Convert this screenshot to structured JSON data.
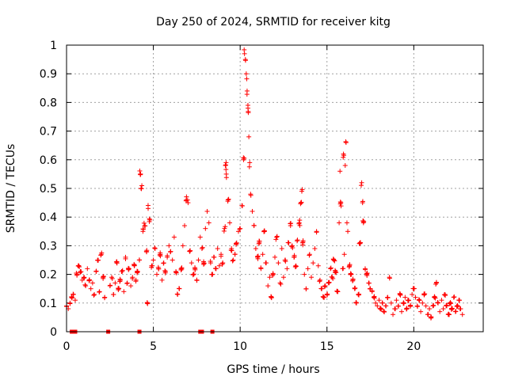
{
  "chart_data": {
    "type": "scatter",
    "title": "Day 250 of 2024, SRMTID for receiver kitg",
    "xlabel": "GPS time / hours",
    "ylabel": "SRMTID / TECUs",
    "xlim": [
      0,
      24
    ],
    "ylim": [
      0,
      1
    ],
    "xticks": [
      0,
      5,
      10,
      15,
      20
    ],
    "xtick_labels": [
      "0",
      "5",
      "10",
      "15",
      "20"
    ],
    "yticks": [
      0,
      0.1,
      0.2,
      0.3,
      0.4,
      0.5,
      0.6,
      0.7,
      0.8,
      0.9,
      1
    ],
    "ytick_labels": [
      "0",
      "0.1",
      "0.2",
      "0.3",
      "0.4",
      "0.5",
      "0.6",
      "0.7",
      "0.8",
      "0.9",
      "1"
    ],
    "grid": true,
    "marker": "plus",
    "color": "#ff0000",
    "series": [
      {
        "name": "SRMTID",
        "points": [
          [
            0.0,
            0.09
          ],
          [
            0.1,
            0.08
          ],
          [
            0.2,
            0.1
          ],
          [
            0.3,
            0.12
          ],
          [
            0.4,
            0.13
          ],
          [
            0.5,
            0.11
          ],
          [
            0.6,
            0.2
          ],
          [
            0.7,
            0.23
          ],
          [
            0.8,
            0.21
          ],
          [
            0.9,
            0.18
          ],
          [
            1.0,
            0.19
          ],
          [
            1.1,
            0.16
          ],
          [
            1.2,
            0.22
          ],
          [
            1.3,
            0.18
          ],
          [
            1.4,
            0.15
          ],
          [
            1.5,
            0.17
          ],
          [
            1.6,
            0.13
          ],
          [
            1.7,
            0.21
          ],
          [
            1.8,
            0.25
          ],
          [
            1.9,
            0.14
          ],
          [
            2.0,
            0.27
          ],
          [
            2.1,
            0.19
          ],
          [
            2.2,
            0.12
          ],
          [
            2.5,
            0.16
          ],
          [
            2.6,
            0.19
          ],
          [
            2.7,
            0.13
          ],
          [
            2.8,
            0.17
          ],
          [
            2.9,
            0.24
          ],
          [
            3.0,
            0.15
          ],
          [
            3.1,
            0.18
          ],
          [
            3.2,
            0.21
          ],
          [
            3.3,
            0.14
          ],
          [
            3.4,
            0.26
          ],
          [
            3.5,
            0.17
          ],
          [
            3.6,
            0.22
          ],
          [
            3.7,
            0.16
          ],
          [
            3.8,
            0.19
          ],
          [
            3.9,
            0.23
          ],
          [
            4.0,
            0.18
          ],
          [
            4.1,
            0.21
          ],
          [
            4.2,
            0.25
          ],
          [
            4.25,
            0.55
          ],
          [
            4.3,
            0.5
          ],
          [
            4.4,
            0.35
          ],
          [
            4.5,
            0.37
          ],
          [
            4.6,
            0.28
          ],
          [
            4.65,
            0.1
          ],
          [
            4.7,
            0.43
          ],
          [
            4.8,
            0.39
          ],
          [
            4.9,
            0.23
          ],
          [
            5.0,
            0.25
          ],
          [
            5.1,
            0.29
          ],
          [
            5.2,
            0.2
          ],
          [
            5.3,
            0.22
          ],
          [
            5.4,
            0.27
          ],
          [
            5.5,
            0.18
          ],
          [
            5.6,
            0.24
          ],
          [
            5.7,
            0.21
          ],
          [
            5.8,
            0.26
          ],
          [
            5.9,
            0.3
          ],
          [
            6.0,
            0.28
          ],
          [
            6.1,
            0.25
          ],
          [
            6.2,
            0.33
          ],
          [
            6.3,
            0.21
          ],
          [
            6.4,
            0.13
          ],
          [
            6.5,
            0.15
          ],
          [
            6.6,
            0.22
          ],
          [
            6.7,
            0.3
          ],
          [
            6.8,
            0.37
          ],
          [
            6.9,
            0.46
          ],
          [
            7.0,
            0.45
          ],
          [
            7.1,
            0.28
          ],
          [
            7.2,
            0.24
          ],
          [
            7.3,
            0.2
          ],
          [
            7.4,
            0.22
          ],
          [
            7.5,
            0.18
          ],
          [
            7.6,
            0.25
          ],
          [
            7.7,
            0.33
          ],
          [
            7.8,
            0.29
          ],
          [
            7.9,
            0.24
          ],
          [
            8.0,
            0.36
          ],
          [
            8.1,
            0.42
          ],
          [
            8.2,
            0.38
          ],
          [
            8.3,
            0.24
          ],
          [
            8.4,
            0.2
          ],
          [
            8.5,
            0.26
          ],
          [
            8.6,
            0.22
          ],
          [
            8.7,
            0.29
          ],
          [
            8.8,
            0.23
          ],
          [
            8.9,
            0.27
          ],
          [
            9.0,
            0.24
          ],
          [
            9.1,
            0.36
          ],
          [
            9.15,
            0.58
          ],
          [
            9.2,
            0.55
          ],
          [
            9.3,
            0.46
          ],
          [
            9.4,
            0.38
          ],
          [
            9.5,
            0.29
          ],
          [
            9.6,
            0.25
          ],
          [
            9.7,
            0.27
          ],
          [
            9.8,
            0.31
          ],
          [
            9.9,
            0.35
          ],
          [
            10.0,
            0.36
          ],
          [
            10.1,
            0.44
          ],
          [
            10.2,
            0.6
          ],
          [
            10.25,
            0.97
          ],
          [
            10.3,
            0.95
          ],
          [
            10.35,
            0.9
          ],
          [
            10.4,
            0.84
          ],
          [
            10.45,
            0.78
          ],
          [
            10.5,
            0.68
          ],
          [
            10.55,
            0.59
          ],
          [
            10.6,
            0.48
          ],
          [
            10.7,
            0.42
          ],
          [
            10.8,
            0.37
          ],
          [
            10.9,
            0.29
          ],
          [
            11.0,
            0.26
          ],
          [
            11.1,
            0.31
          ],
          [
            11.2,
            0.22
          ],
          [
            11.3,
            0.27
          ],
          [
            11.4,
            0.35
          ],
          [
            11.5,
            0.24
          ],
          [
            11.6,
            0.16
          ],
          [
            11.7,
            0.19
          ],
          [
            11.8,
            0.12
          ],
          [
            11.9,
            0.2
          ],
          [
            12.0,
            0.26
          ],
          [
            12.1,
            0.33
          ],
          [
            12.2,
            0.24
          ],
          [
            12.3,
            0.17
          ],
          [
            12.4,
            0.29
          ],
          [
            12.5,
            0.19
          ],
          [
            12.6,
            0.25
          ],
          [
            12.7,
            0.22
          ],
          [
            12.8,
            0.31
          ],
          [
            12.9,
            0.37
          ],
          [
            13.0,
            0.3
          ],
          [
            13.1,
            0.26
          ],
          [
            13.2,
            0.23
          ],
          [
            13.3,
            0.32
          ],
          [
            13.4,
            0.38
          ],
          [
            13.5,
            0.45
          ],
          [
            13.55,
            0.49
          ],
          [
            13.6,
            0.31
          ],
          [
            13.7,
            0.2
          ],
          [
            13.8,
            0.15
          ],
          [
            13.9,
            0.22
          ],
          [
            14.0,
            0.27
          ],
          [
            14.1,
            0.19
          ],
          [
            14.2,
            0.24
          ],
          [
            14.3,
            0.29
          ],
          [
            14.4,
            0.35
          ],
          [
            14.5,
            0.23
          ],
          [
            14.6,
            0.18
          ],
          [
            14.7,
            0.15
          ],
          [
            14.8,
            0.12
          ],
          [
            14.9,
            0.16
          ],
          [
            15.0,
            0.13
          ],
          [
            15.1,
            0.17
          ],
          [
            15.2,
            0.22
          ],
          [
            15.3,
            0.19
          ],
          [
            15.4,
            0.25
          ],
          [
            15.5,
            0.21
          ],
          [
            15.6,
            0.14
          ],
          [
            15.7,
            0.38
          ],
          [
            15.75,
            0.56
          ],
          [
            15.8,
            0.45
          ],
          [
            15.9,
            0.22
          ],
          [
            15.95,
            0.62
          ],
          [
            16.0,
            0.27
          ],
          [
            16.05,
            0.58
          ],
          [
            16.1,
            0.66
          ],
          [
            16.15,
            0.38
          ],
          [
            16.2,
            0.35
          ],
          [
            16.3,
            0.23
          ],
          [
            16.4,
            0.2
          ],
          [
            16.5,
            0.18
          ],
          [
            16.6,
            0.15
          ],
          [
            16.7,
            0.1
          ],
          [
            16.8,
            0.13
          ],
          [
            16.9,
            0.31
          ],
          [
            17.0,
            0.52
          ],
          [
            17.05,
            0.45
          ],
          [
            17.1,
            0.38
          ],
          [
            17.2,
            0.22
          ],
          [
            17.3,
            0.2
          ],
          [
            17.4,
            0.17
          ],
          [
            17.5,
            0.15
          ],
          [
            17.6,
            0.14
          ],
          [
            17.7,
            0.12
          ],
          [
            17.8,
            0.1
          ],
          [
            17.9,
            0.09
          ],
          [
            18.0,
            0.11
          ],
          [
            18.1,
            0.08
          ],
          [
            18.2,
            0.1
          ],
          [
            18.3,
            0.07
          ],
          [
            18.4,
            0.09
          ],
          [
            18.5,
            0.12
          ],
          [
            18.6,
            0.19
          ],
          [
            18.7,
            0.1
          ],
          [
            18.8,
            0.06
          ],
          [
            18.9,
            0.08
          ],
          [
            19.0,
            0.11
          ],
          [
            19.1,
            0.09
          ],
          [
            19.2,
            0.13
          ],
          [
            19.3,
            0.07
          ],
          [
            19.4,
            0.1
          ],
          [
            19.5,
            0.12
          ],
          [
            19.6,
            0.08
          ],
          [
            19.7,
            0.11
          ],
          [
            19.8,
            0.09
          ],
          [
            19.9,
            0.13
          ],
          [
            20.0,
            0.15
          ],
          [
            20.1,
            0.12
          ],
          [
            20.2,
            0.09
          ],
          [
            20.3,
            0.11
          ],
          [
            20.4,
            0.07
          ],
          [
            20.5,
            0.1
          ],
          [
            20.6,
            0.13
          ],
          [
            20.7,
            0.09
          ],
          [
            20.8,
            0.06
          ],
          [
            20.9,
            0.08
          ],
          [
            21.0,
            0.05
          ],
          [
            21.1,
            0.09
          ],
          [
            21.2,
            0.12
          ],
          [
            21.3,
            0.17
          ],
          [
            21.4,
            0.1
          ],
          [
            21.5,
            0.07
          ],
          [
            21.6,
            0.11
          ],
          [
            21.7,
            0.08
          ],
          [
            21.8,
            0.13
          ],
          [
            21.9,
            0.09
          ],
          [
            22.0,
            0.06
          ],
          [
            22.1,
            0.1
          ],
          [
            22.2,
            0.08
          ],
          [
            22.3,
            0.12
          ],
          [
            22.4,
            0.07
          ],
          [
            22.5,
            0.09
          ],
          [
            22.6,
            0.11
          ],
          [
            22.7,
            0.08
          ],
          [
            22.8,
            0.06
          ]
        ]
      }
    ],
    "zero_points": [
      0.3,
      0.5,
      2.4,
      4.2,
      7.7,
      7.8,
      8.4
    ]
  }
}
